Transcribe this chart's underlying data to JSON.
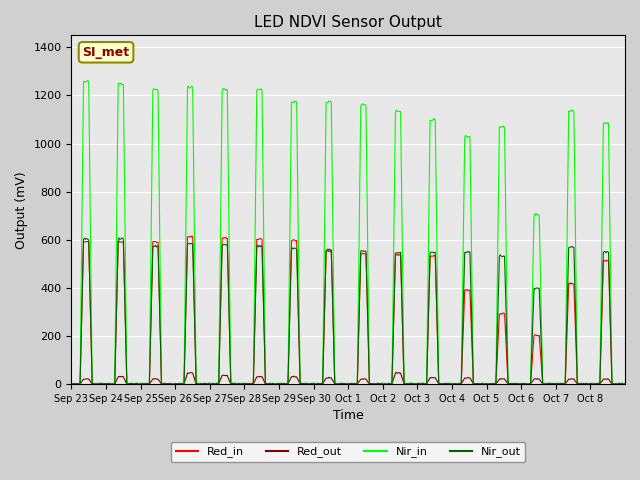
{
  "title": "LED NDVI Sensor Output",
  "xlabel": "Time",
  "ylabel": "Output (mV)",
  "ylim": [
    0,
    1450
  ],
  "yticks": [
    0,
    200,
    400,
    600,
    800,
    1000,
    1200,
    1400
  ],
  "legend_label": "SI_met",
  "legend_entries": [
    "Red_in",
    "Red_out",
    "Nir_in",
    "Nir_out"
  ],
  "legend_colors": [
    "#ff0000",
    "#800000",
    "#00ff00",
    "#006400"
  ],
  "plot_bg_color": "#e8e8e8",
  "fig_bg_color": "#d0d0d0",
  "tick_labels": [
    "Sep 23",
    "Sep 24",
    "Sep 25",
    "Sep 26",
    "Sep 27",
    "Sep 28",
    "Sep 29",
    "Sep 30",
    "Oct 1",
    "Oct 2",
    "Oct 3",
    "Oct 4",
    "Oct 5",
    "Oct 6",
    "Oct 7",
    "Oct 8"
  ],
  "num_cycles": 16,
  "red_in_peaks": [
    590,
    590,
    590,
    610,
    605,
    600,
    595,
    550,
    540,
    535,
    530,
    390,
    290,
    200,
    415,
    510
  ],
  "red_out_peaks": [
    20,
    30,
    20,
    45,
    35,
    30,
    30,
    25,
    20,
    45,
    25,
    25,
    20,
    20,
    20,
    20
  ],
  "nir_in_peaks": [
    1255,
    1245,
    1220,
    1230,
    1220,
    1220,
    1170,
    1170,
    1155,
    1130,
    1095,
    1025,
    1065,
    700,
    1130,
    1080
  ],
  "nir_out_peaks": [
    600,
    600,
    570,
    580,
    575,
    570,
    560,
    555,
    550,
    545,
    545,
    545,
    530,
    395,
    565,
    545
  ]
}
